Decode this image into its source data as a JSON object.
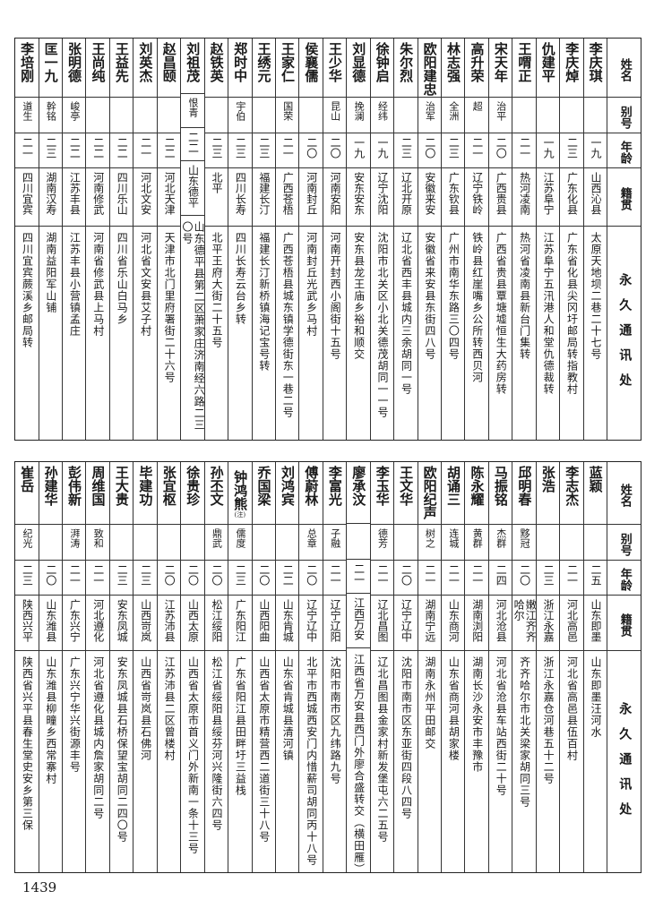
{
  "headers": {
    "name": "姓名",
    "alias": "别号",
    "age": "年龄",
    "native": "籍贯",
    "address": "永久通讯处"
  },
  "top_table": [
    {
      "name": "李庆琪",
      "alias": "",
      "age": "一九",
      "native": "山西沁县",
      "address": "太原天地坝二巷二十七号"
    },
    {
      "name": "李庆焯",
      "alias": "",
      "age": "二三",
      "native": "广东化县",
      "address": "广东省化县尖冈圩邮局转指教村"
    },
    {
      "name": "仇建平",
      "alias": "",
      "age": "一九",
      "native": "江苏阜宁",
      "address": "江苏阜宁五汛港人和堂仇德裁转"
    },
    {
      "name": "王喟正",
      "alias": "",
      "age": "二一",
      "native": "热河凌南",
      "address": "热河省凌南县新台门集转"
    },
    {
      "name": "宋天年",
      "alias": "治平",
      "age": "二〇",
      "native": "广西贵县",
      "address": "广西省贵县覃塘墟恒生大药房转"
    },
    {
      "name": "高升荣",
      "alias": "超",
      "age": "二一",
      "native": "辽宁铁岭",
      "address": "铁岭县红崖嘴乡公所转西贝河"
    },
    {
      "name": "林志强",
      "alias": "全洲",
      "age": "二三",
      "native": "广东钦县",
      "address": "广州市南华东路三〇四号"
    },
    {
      "name": "欧阳建忠",
      "alias": "治军",
      "age": "二〇",
      "native": "安徽来安",
      "address": "安徽省来安县东街四八号"
    },
    {
      "name": "朱尔烈",
      "alias": "",
      "age": "二三",
      "native": "辽北开原",
      "address": "辽北省西丰县城内三余胡同一号"
    },
    {
      "name": "徐钟启",
      "alias": "经纬",
      "age": "一九",
      "native": "辽宁沈阳",
      "address": "沈阳市北关区小北关德茂胡同一一号"
    },
    {
      "name": "刘显德",
      "alias": "挽澜",
      "age": "一九",
      "native": "安东安东",
      "address": "安东县龙王庙乡裕和顺交"
    },
    {
      "name": "王少华",
      "alias": "昆山",
      "age": "二〇",
      "native": "河南安阳",
      "address": "河南开封西小阁街十五号"
    },
    {
      "name": "侯襄儒",
      "alias": "",
      "age": "二〇",
      "native": "河南封丘",
      "address": "河南封丘光武乡马村"
    },
    {
      "name": "王家仁",
      "alias": "国荣",
      "age": "二一",
      "native": "广西苍梧",
      "address": "广西苍梧县城东镇学德街东一巷二号"
    },
    {
      "name": "王绣元",
      "alias": "",
      "age": "二三",
      "native": "福建长汀",
      "address": "福建长汀新桥镇海记宝号转"
    },
    {
      "name": "郑时中",
      "alias": "宇伯",
      "age": "二三",
      "native": "四川长寿",
      "address": "四川长寿云台乡转"
    },
    {
      "name": "赵铁英",
      "alias": "",
      "age": "二三",
      "native": "北平",
      "address": "北平王府大街二十五号"
    },
    {
      "name": "刘祖茂",
      "alias": "恨青",
      "age": "二二",
      "native": "山东德平",
      "address": "山东德平县第二区萧家庄济南经六路二三〇号"
    },
    {
      "name": "赵昌颐",
      "alias": "",
      "age": "二二",
      "native": "河北天津",
      "address": "天津市北门里府署街二十六号"
    },
    {
      "name": "刘英杰",
      "alias": "",
      "age": "二一",
      "native": "河北文安",
      "address": "河北省文安县艾子村"
    },
    {
      "name": "王益先",
      "alias": "",
      "age": "二二",
      "native": "四川乐山",
      "address": "四川省乐山白马乡"
    },
    {
      "name": "王尚纯",
      "alias": "",
      "age": "二二",
      "native": "河南修武",
      "address": "河南省修武县上马村"
    },
    {
      "name": "张明德",
      "alias": "峻亭",
      "age": "二二",
      "native": "江苏丰县",
      "address": "江苏丰县小营镇孟庄"
    },
    {
      "name": "匡一九",
      "alias": "幹铭",
      "age": "二三",
      "native": "湖南汉寿",
      "address": "湖南益阳军山铺"
    },
    {
      "name": "李培刚",
      "alias": "道生",
      "age": "二一",
      "native": "四川宜宾",
      "address": "四川宜宾蕨溪乡邮局转"
    }
  ],
  "bottom_table": [
    {
      "name": "蓝颖",
      "alias": "",
      "age": "二五",
      "native": "山东即墨",
      "address": "山东即墨汪河水"
    },
    {
      "name": "李志杰",
      "alias": "",
      "age": "二一",
      "native": "河北高邑",
      "address": "河北省高邑县伍百村"
    },
    {
      "name": "张浩",
      "alias": "",
      "age": "二三",
      "native": "浙江永嘉",
      "address": "浙江永嘉仓河巷五十二号"
    },
    {
      "name": "邱明春",
      "alias": "黟冠",
      "age": "二〇",
      "native": "嫩江齐齐哈尔",
      "address": "齐齐哈尔市北关梁家胡同三号"
    },
    {
      "name": "马振铭",
      "alias": "杰群",
      "age": "二四",
      "native": "河北沧县",
      "address": "河北省沧县车站西街二十号"
    },
    {
      "name": "陈永耀",
      "alias": "黄群",
      "age": "二一",
      "native": "湖南浏阳",
      "address": "湖南长沙永安市丰豫市"
    },
    {
      "name": "胡诵三",
      "alias": "连城",
      "age": "二一",
      "native": "山东商河",
      "address": "山东省商河县胡家楼"
    },
    {
      "name": "欧阳纪声",
      "alias": "树之",
      "age": "二一",
      "native": "湖南宁远",
      "address": "湖南永州平田邮交"
    },
    {
      "name": "王文华",
      "alias": "",
      "age": "二〇",
      "native": "辽宁辽中",
      "address": "沈阳市南市区东亚街四段八四号"
    },
    {
      "name": "李玉华",
      "alias": "德芳",
      "age": "二一",
      "native": "辽北昌图",
      "address": "辽北昌图县金家村新发堡屯六二五号"
    },
    {
      "name": "廖承汶",
      "alias": "",
      "age": "二一",
      "native": "江西万安",
      "address": "江西省万安县西门外廖合盛转交（横田雁）"
    },
    {
      "name": "李富光",
      "alias": "子融",
      "age": "二一",
      "native": "辽宁辽阳",
      "address": "沈阳市南市区九纬路九号"
    },
    {
      "name": "傅蔚林",
      "alias": "总章",
      "age": "二〇",
      "native": "辽宁辽中",
      "address": "北平市西城西安门内惜薪司胡同丙十八号"
    },
    {
      "name": "刘鸿宾",
      "alias": "",
      "age": "二二",
      "native": "山东肯城",
      "address": "山东省肯城县清河镇"
    },
    {
      "name": "乔国梁",
      "alias": "",
      "age": "二〇",
      "native": "山西阳曲",
      "address": "山西省太原市精营西二道街三十八号"
    },
    {
      "name": "钟鸿熊",
      "name_note": "(注)",
      "alias": "儒度",
      "age": "二三",
      "native": "广东阳江",
      "address": "广东省阳江县田畔圩三益栈"
    },
    {
      "name": "孙丕文",
      "alias": "鼎武",
      "age": "二〇",
      "native": "松江绥阳",
      "address": "松江省绥阳县绥芬河兴隆街六四号"
    },
    {
      "name": "徐贵珍",
      "alias": "",
      "age": "二〇",
      "native": "山西太原",
      "address": "山西省太原市首义门外新南一条十三号"
    },
    {
      "name": "张宜枢",
      "alias": "",
      "age": "二〇",
      "native": "江苏沛县",
      "address": "江苏沛县二区曾楼村"
    },
    {
      "name": "毕建功",
      "alias": "",
      "age": "二三",
      "native": "山西岢岚",
      "address": "山西省岢岚县石佛河"
    },
    {
      "name": "王大贵",
      "alias": "",
      "age": "二三",
      "native": "安东凤城",
      "address": "安东凤城县石桥保望宝胡同二四〇号"
    },
    {
      "name": "周维国",
      "alias": "致和",
      "age": "二一",
      "native": "河北遵化",
      "address": "河北省遵化县城内詹家胡同二号"
    },
    {
      "name": "彭伟新",
      "alias": "湃涛",
      "age": "二一",
      "native": "广东兴宁",
      "address": "广东兴宁华兴街源丰号"
    },
    {
      "name": "孙建华",
      "alias": "",
      "age": "二〇",
      "native": "山东潍县",
      "address": "山东潍县柳疃乡西常寨村"
    },
    {
      "name": "崔岳",
      "alias": "纪光",
      "age": "二三",
      "native": "陕西兴平",
      "address": "陕西省兴平县春生堂史安乡第三保"
    }
  ],
  "page_number": "1439"
}
